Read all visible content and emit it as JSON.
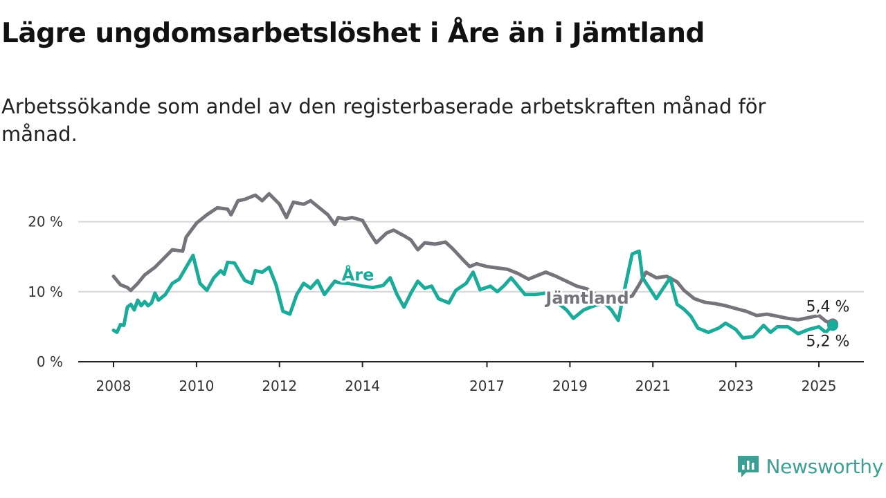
{
  "title": "Lägre ungdomsarbetslöshet i Åre än i Jämtland",
  "subtitle": "Arbetssökande som andel av den registerbaserade arbetskraften månad för månad.",
  "brand": {
    "name": "Newsworthy",
    "icon": "newsworthy-logo-icon",
    "color": "#3d9e94"
  },
  "chart_data": {
    "type": "line",
    "title": "Lägre ungdomsarbetslöshet i Åre än i Jämtland",
    "xlabel": "",
    "ylabel": "",
    "xlim": [
      "2008-01",
      "2025-06"
    ],
    "ylim": [
      0,
      25
    ],
    "y_ticks": [
      0,
      10,
      20
    ],
    "y_tick_labels": [
      "0 %",
      "10 %",
      "20 %"
    ],
    "x_ticks": [
      "2008-01",
      "2010-01",
      "2012-01",
      "2014-01",
      "2017-01",
      "2019-01",
      "2021-01",
      "2023-01",
      "2025-01"
    ],
    "x_tick_labels": [
      "2008",
      "2010",
      "2012",
      "2014",
      "2017",
      "2019",
      "2021",
      "2023",
      "2025"
    ],
    "grid": "horizontal",
    "legend": "none",
    "series": [
      {
        "name": "Jämtland",
        "color": "#76737a",
        "end_label": "5,4 %",
        "points": [
          [
            "2008-01",
            12.2
          ],
          [
            "2008-03",
            11
          ],
          [
            "2008-05",
            10.6
          ],
          [
            "2008-06",
            10.2
          ],
          [
            "2008-08",
            11.2
          ],
          [
            "2008-10",
            12.4
          ],
          [
            "2009-01",
            13.5
          ],
          [
            "2009-04",
            15
          ],
          [
            "2009-06",
            16
          ],
          [
            "2009-09",
            15.8
          ],
          [
            "2009-10",
            17.8
          ],
          [
            "2010-01",
            19.8
          ],
          [
            "2010-04",
            21
          ],
          [
            "2010-07",
            22
          ],
          [
            "2010-10",
            21.8
          ],
          [
            "2010-11",
            21
          ],
          [
            "2011-01",
            23
          ],
          [
            "2011-03",
            23.2
          ],
          [
            "2011-06",
            23.8
          ],
          [
            "2011-08",
            23
          ],
          [
            "2011-10",
            24
          ],
          [
            "2012-01",
            22.5
          ],
          [
            "2012-03",
            20.6
          ],
          [
            "2012-05",
            22.8
          ],
          [
            "2012-08",
            22.5
          ],
          [
            "2012-10",
            23
          ],
          [
            "2012-12",
            22.2
          ],
          [
            "2013-03",
            21
          ],
          [
            "2013-05",
            19.6
          ],
          [
            "2013-06",
            20.6
          ],
          [
            "2013-08",
            20.4
          ],
          [
            "2013-10",
            20.6
          ],
          [
            "2014-01",
            20.2
          ],
          [
            "2014-03",
            18.5
          ],
          [
            "2014-05",
            17
          ],
          [
            "2014-08",
            18.4
          ],
          [
            "2014-10",
            18.8
          ],
          [
            "2015-01",
            18
          ],
          [
            "2015-03",
            17.4
          ],
          [
            "2015-05",
            16
          ],
          [
            "2015-07",
            17
          ],
          [
            "2015-10",
            16.8
          ],
          [
            "2016-01",
            17.1
          ],
          [
            "2016-03",
            16.2
          ],
          [
            "2016-06",
            14.6
          ],
          [
            "2016-08",
            13.6
          ],
          [
            "2016-10",
            14
          ],
          [
            "2017-01",
            13.6
          ],
          [
            "2017-04",
            13.4
          ],
          [
            "2017-07",
            13.2
          ],
          [
            "2017-10",
            12.6
          ],
          [
            "2018-01",
            11.8
          ],
          [
            "2018-04",
            12.4
          ],
          [
            "2018-06",
            12.8
          ],
          [
            "2018-09",
            12.2
          ],
          [
            "2018-12",
            11.5
          ],
          [
            "2019-03",
            10.8
          ],
          [
            "2019-06",
            10.4
          ],
          [
            "2019-09",
            9.5
          ],
          [
            "2020-01",
            9.2
          ],
          [
            "2020-04",
            9
          ],
          [
            "2020-07",
            9.4
          ],
          [
            "2020-09",
            11
          ],
          [
            "2020-11",
            12.8
          ],
          [
            "2021-02",
            12
          ],
          [
            "2021-05",
            12.2
          ],
          [
            "2021-08",
            11.4
          ],
          [
            "2021-10",
            10.2
          ],
          [
            "2022-01",
            9
          ],
          [
            "2022-04",
            8.5
          ],
          [
            "2022-07",
            8.3
          ],
          [
            "2022-10",
            8
          ],
          [
            "2023-01",
            7.6
          ],
          [
            "2023-04",
            7.2
          ],
          [
            "2023-07",
            6.6
          ],
          [
            "2023-10",
            6.8
          ],
          [
            "2024-01",
            6.5
          ],
          [
            "2024-04",
            6.2
          ],
          [
            "2024-07",
            6
          ],
          [
            "2024-10",
            6.3
          ],
          [
            "2025-01",
            6.6
          ],
          [
            "2025-03",
            5.8
          ],
          [
            "2025-05",
            5.4
          ]
        ]
      },
      {
        "name": "Åre",
        "color": "#1aab9b",
        "end_label": "5,2 %",
        "points": [
          [
            "2008-01",
            4.5
          ],
          [
            "2008-02",
            4.2
          ],
          [
            "2008-03",
            5.3
          ],
          [
            "2008-04",
            5.2
          ],
          [
            "2008-05",
            7.8
          ],
          [
            "2008-06",
            8.2
          ],
          [
            "2008-07",
            7.4
          ],
          [
            "2008-08",
            8.8
          ],
          [
            "2008-09",
            8
          ],
          [
            "2008-10",
            8.6
          ],
          [
            "2008-11",
            8
          ],
          [
            "2008-12",
            8.4
          ],
          [
            "2009-01",
            9.8
          ],
          [
            "2009-02",
            8.8
          ],
          [
            "2009-04",
            9.6
          ],
          [
            "2009-06",
            11.2
          ],
          [
            "2009-08",
            11.8
          ],
          [
            "2009-10",
            13.5
          ],
          [
            "2009-12",
            15.2
          ],
          [
            "2010-02",
            11.2
          ],
          [
            "2010-04",
            10.2
          ],
          [
            "2010-06",
            12
          ],
          [
            "2010-08",
            13
          ],
          [
            "2010-09",
            12.5
          ],
          [
            "2010-10",
            14.2
          ],
          [
            "2010-12",
            14.1
          ],
          [
            "2011-02",
            12.4
          ],
          [
            "2011-03",
            11.6
          ],
          [
            "2011-05",
            11.2
          ],
          [
            "2011-06",
            13
          ],
          [
            "2011-08",
            12.8
          ],
          [
            "2011-10",
            13.5
          ],
          [
            "2011-12",
            11
          ],
          [
            "2012-02",
            7.2
          ],
          [
            "2012-04",
            6.8
          ],
          [
            "2012-06",
            9.6
          ],
          [
            "2012-08",
            11.2
          ],
          [
            "2012-10",
            10.5
          ],
          [
            "2012-12",
            11.6
          ],
          [
            "2013-02",
            9.6
          ],
          [
            "2013-05",
            11.5
          ],
          [
            "2013-06",
            11.3
          ],
          [
            "2013-09",
            11.2
          ],
          [
            "2014-01",
            10.8
          ],
          [
            "2014-04",
            10.6
          ],
          [
            "2014-07",
            10.9
          ],
          [
            "2014-09",
            12
          ],
          [
            "2014-11",
            9.6
          ],
          [
            "2015-01",
            7.8
          ],
          [
            "2015-03",
            9.8
          ],
          [
            "2015-05",
            11.5
          ],
          [
            "2015-07",
            10.5
          ],
          [
            "2015-09",
            10.8
          ],
          [
            "2015-11",
            9
          ],
          [
            "2016-02",
            8.4
          ],
          [
            "2016-04",
            10.2
          ],
          [
            "2016-07",
            11.2
          ],
          [
            "2016-09",
            12.8
          ],
          [
            "2016-11",
            10.3
          ],
          [
            "2017-02",
            10.8
          ],
          [
            "2017-04",
            10
          ],
          [
            "2017-06",
            10.9
          ],
          [
            "2017-08",
            12
          ],
          [
            "2017-10",
            10.8
          ],
          [
            "2017-12",
            9.6
          ],
          [
            "2018-03",
            9.6
          ],
          [
            "2018-06",
            9.8
          ],
          [
            "2018-09",
            8.6
          ],
          [
            "2018-12",
            7.4
          ],
          [
            "2019-02",
            6.2
          ],
          [
            "2019-05",
            7.4
          ],
          [
            "2019-08",
            8
          ],
          [
            "2019-11",
            8.4
          ],
          [
            "2020-01",
            7.4
          ],
          [
            "2020-03",
            5.9
          ],
          [
            "2020-05",
            10.8
          ],
          [
            "2020-07",
            15.4
          ],
          [
            "2020-09",
            15.8
          ],
          [
            "2020-10",
            12
          ],
          [
            "2020-12",
            10.5
          ],
          [
            "2021-02",
            9
          ],
          [
            "2021-04",
            10.5
          ],
          [
            "2021-06",
            12
          ],
          [
            "2021-08",
            8.2
          ],
          [
            "2021-10",
            7.5
          ],
          [
            "2021-12",
            6.5
          ],
          [
            "2022-02",
            4.8
          ],
          [
            "2022-05",
            4.2
          ],
          [
            "2022-08",
            4.8
          ],
          [
            "2022-10",
            5.5
          ],
          [
            "2023-01",
            4.6
          ],
          [
            "2023-03",
            3.4
          ],
          [
            "2023-06",
            3.6
          ],
          [
            "2023-09",
            5.2
          ],
          [
            "2023-11",
            4.2
          ],
          [
            "2024-01",
            5
          ],
          [
            "2024-04",
            5
          ],
          [
            "2024-07",
            4
          ],
          [
            "2024-10",
            4.6
          ],
          [
            "2025-01",
            5
          ],
          [
            "2025-03",
            4.2
          ],
          [
            "2025-05",
            5.2
          ]
        ]
      }
    ]
  }
}
